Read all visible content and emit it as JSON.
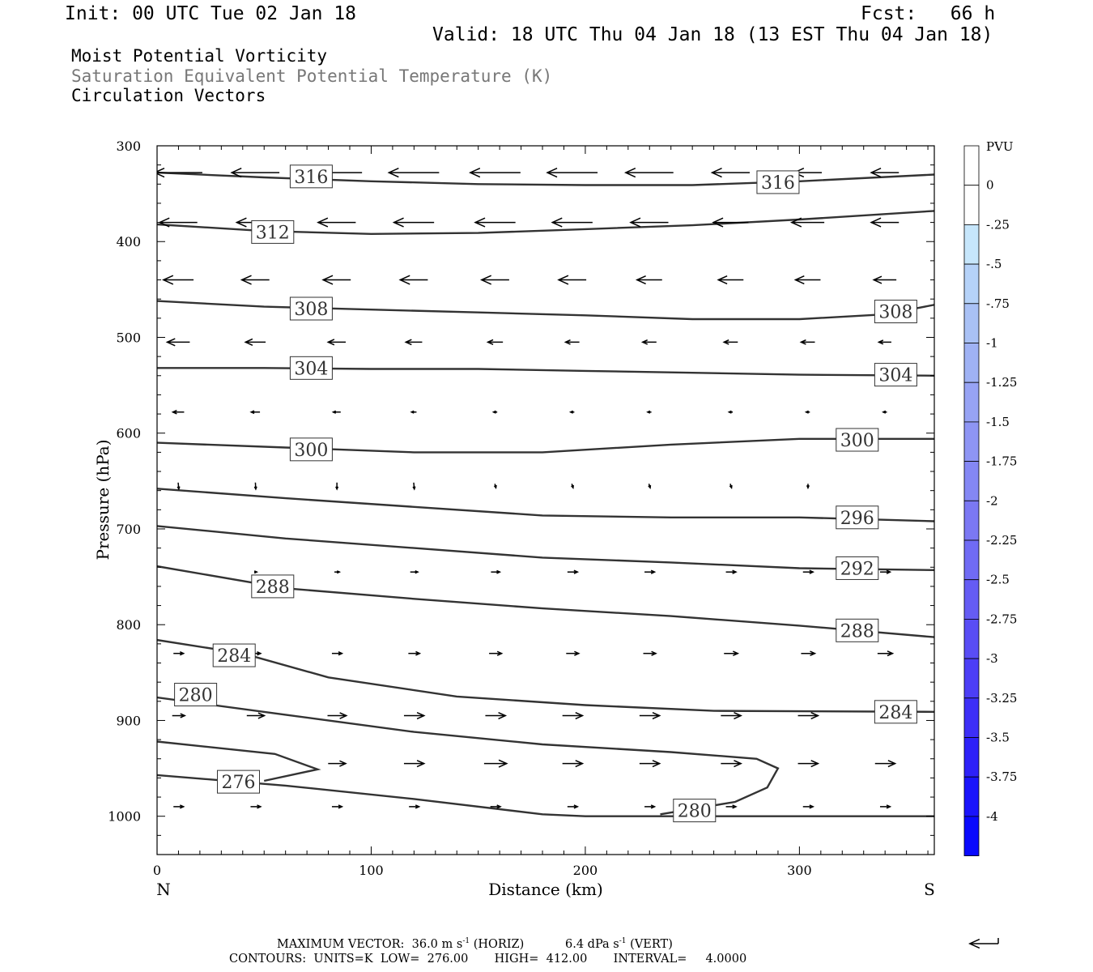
{
  "header": {
    "init": "Init: 00 UTC Tue 02 Jan 18",
    "fcst": "Fcst:   66 h",
    "valid": "Valid: 18 UTC Thu 04 Jan 18 (13 EST Thu 04 Jan 18)",
    "field1": "Moist Potential Vorticity",
    "field2": "Saturation Equivalent Potential Temperature (K)",
    "field3": "Circulation Vectors"
  },
  "footer": {
    "max_vector_label": "MAXIMUM VECTOR:",
    "max_h_value": "36.0 m s",
    "max_h_unit": "(HORIZ)",
    "max_v_value": "6.4 dPa s",
    "max_v_unit": "(VERT)",
    "exponent": "-1",
    "contours": "CONTOURS:  UNITS=K  LOW=  276.00       HIGH=  412.00       INTERVAL=     4.0000"
  },
  "colors": {
    "contour": "#333333",
    "axis": "#000000"
  },
  "chart_data": {
    "type": "cross-section",
    "xlabel": "Distance (km)",
    "ylabel": "Pressure (hPa)",
    "xlim": [
      0,
      363
    ],
    "ylim": [
      1040,
      300
    ],
    "x_ticks": [
      "0",
      "100",
      "200",
      "300"
    ],
    "y_ticks": [
      "300",
      "400",
      "500",
      "600",
      "700",
      "800",
      "900",
      "1000"
    ],
    "left_end_label": "N",
    "right_end_label": "S",
    "colorbar": {
      "unit": "PVU",
      "labels": [
        "0",
        "-.25",
        "-.5",
        "-.75",
        "-1",
        "-1.25",
        "-1.5",
        "-1.75",
        "-2",
        "-2.25",
        "-2.5",
        "-2.75",
        "-3",
        "-3.25",
        "-3.5",
        "-3.75",
        "-4"
      ],
      "colors": [
        "#ffffff",
        "#ffffff",
        "#c6e6fb",
        "#b5d2f8",
        "#a9c1f5",
        "#9fb2f4",
        "#97a3f4",
        "#8e95f4",
        "#8487f4",
        "#7b78f3",
        "#706bf4",
        "#655cf4",
        "#594df5",
        "#4c3ef6",
        "#3d2ff7",
        "#2d21f8",
        "#1a14fb",
        "#0a0afd"
      ]
    },
    "theta_contours": [
      {
        "value": 316,
        "points": [
          [
            0,
            328
          ],
          [
            50,
            333
          ],
          [
            100,
            337
          ],
          [
            150,
            340
          ],
          [
            200,
            341
          ],
          [
            250,
            341
          ],
          [
            300,
            337
          ],
          [
            363,
            330
          ]
        ],
        "labels": [
          [
            72,
            332
          ],
          [
            290,
            338
          ]
        ]
      },
      {
        "value": 312,
        "points": [
          [
            0,
            382
          ],
          [
            50,
            389
          ],
          [
            100,
            392
          ],
          [
            150,
            391
          ],
          [
            200,
            387
          ],
          [
            250,
            383
          ],
          [
            300,
            377
          ],
          [
            363,
            368
          ]
        ],
        "labels": [
          [
            54,
            390
          ]
        ]
      },
      {
        "value": 308,
        "points": [
          [
            0,
            462
          ],
          [
            50,
            468
          ],
          [
            100,
            471
          ],
          [
            150,
            474
          ],
          [
            200,
            477
          ],
          [
            250,
            481
          ],
          [
            300,
            481
          ],
          [
            340,
            476
          ],
          [
            363,
            466
          ]
        ],
        "labels": [
          [
            72,
            470
          ],
          [
            345,
            473
          ]
        ]
      },
      {
        "value": 304,
        "points": [
          [
            0,
            532
          ],
          [
            50,
            532
          ],
          [
            100,
            533
          ],
          [
            150,
            533
          ],
          [
            200,
            535
          ],
          [
            250,
            537
          ],
          [
            300,
            539
          ],
          [
            363,
            540
          ]
        ],
        "labels": [
          [
            72,
            532
          ],
          [
            345,
            539
          ]
        ]
      },
      {
        "value": 300,
        "points": [
          [
            0,
            610
          ],
          [
            60,
            615
          ],
          [
            120,
            620
          ],
          [
            180,
            620
          ],
          [
            240,
            612
          ],
          [
            300,
            606
          ],
          [
            363,
            606
          ]
        ],
        "labels": [
          [
            72,
            617
          ],
          [
            327,
            607
          ]
        ]
      },
      {
        "value": 296,
        "points": [
          [
            0,
            658
          ],
          [
            60,
            668
          ],
          [
            120,
            677
          ],
          [
            180,
            686
          ],
          [
            240,
            688
          ],
          [
            300,
            688
          ],
          [
            363,
            692
          ]
        ],
        "labels": [
          [
            327,
            688
          ]
        ]
      },
      {
        "value": 292,
        "points": [
          [
            0,
            697
          ],
          [
            60,
            710
          ],
          [
            120,
            720
          ],
          [
            180,
            730
          ],
          [
            240,
            735
          ],
          [
            300,
            741
          ],
          [
            363,
            743
          ]
        ],
        "labels": [
          [
            327,
            741
          ]
        ]
      },
      {
        "value": 288,
        "points": [
          [
            0,
            739
          ],
          [
            60,
            762
          ],
          [
            120,
            773
          ],
          [
            180,
            783
          ],
          [
            240,
            791
          ],
          [
            300,
            801
          ],
          [
            363,
            813
          ]
        ],
        "labels": [
          [
            54,
            760
          ],
          [
            327,
            806
          ]
        ]
      },
      {
        "value": 284,
        "points": [
          [
            0,
            816
          ],
          [
            40,
            830
          ],
          [
            80,
            855
          ],
          [
            140,
            875
          ],
          [
            200,
            884
          ],
          [
            260,
            890
          ],
          [
            363,
            891
          ]
        ],
        "labels": [
          [
            36,
            832
          ],
          [
            345,
            891
          ]
        ]
      },
      {
        "value": 280,
        "points": [
          [
            0,
            876
          ],
          [
            60,
            894
          ],
          [
            120,
            912
          ],
          [
            180,
            925
          ],
          [
            240,
            933
          ],
          [
            280,
            940
          ],
          [
            290,
            950
          ],
          [
            285,
            970
          ],
          [
            270,
            985
          ],
          [
            235,
            998
          ]
        ],
        "labels": [
          [
            18,
            873
          ],
          [
            251,
            994
          ]
        ]
      },
      {
        "value": 280,
        "points": [
          [
            0,
            922
          ],
          [
            55,
            935
          ],
          [
            75,
            951
          ],
          [
            50,
            963
          ]
        ],
        "labels": []
      },
      {
        "value": 276,
        "points": [
          [
            0,
            957
          ],
          [
            60,
            968
          ],
          [
            120,
            982
          ],
          [
            180,
            998
          ],
          [
            200,
            1000
          ],
          [
            363,
            1000
          ]
        ],
        "labels": [
          [
            38,
            964
          ]
        ]
      }
    ],
    "vectors": {
      "x": [
        10,
        46,
        84,
        120,
        158,
        194,
        230,
        268,
        304,
        340
      ],
      "rows": [
        {
          "p": 328,
          "u": [
            -38,
            -38,
            -40,
            -40,
            -40,
            -40,
            -38,
            -30,
            -22,
            -22
          ]
        },
        {
          "p": 380,
          "u": [
            -30,
            -30,
            -30,
            -32,
            -32,
            -32,
            -30,
            -28,
            -26,
            -22
          ]
        },
        {
          "p": 440,
          "u": [
            -24,
            -22,
            -22,
            -22,
            -22,
            -22,
            -20,
            -20,
            -20,
            -18
          ]
        },
        {
          "p": 505,
          "u": [
            -18,
            -16,
            -14,
            -13,
            -12,
            -11,
            -11,
            -11,
            -11,
            -10
          ]
        },
        {
          "p": 578,
          "u": [
            -9,
            -7,
            -6,
            -4,
            -3,
            -3,
            -3,
            -3,
            -3,
            -3
          ]
        },
        {
          "p": 655,
          "u": [
            0.5,
            0.3,
            0,
            0.5,
            0.8,
            1,
            1,
            1,
            0,
            0
          ],
          "w": [
            0.8,
            0.8,
            0.8,
            0.8,
            0.5,
            0.5,
            0.5,
            0.5,
            0.5,
            0
          ]
        },
        {
          "p": 745,
          "u": [
            0,
            2,
            4,
            6,
            7,
            8,
            8,
            8,
            8,
            8
          ]
        },
        {
          "p": 830,
          "u": [
            8,
            8,
            8,
            9,
            10,
            10,
            10,
            11,
            11,
            12
          ]
        },
        {
          "p": 895,
          "u": [
            10,
            14,
            15,
            16,
            16,
            16,
            16,
            16,
            16,
            16
          ]
        },
        {
          "p": 945,
          "u": [
            0,
            0,
            14,
            16,
            18,
            16,
            16,
            16,
            16,
            16
          ]
        },
        {
          "p": 990,
          "u": [
            8,
            8,
            8,
            8,
            8,
            8,
            8,
            8,
            8,
            8
          ]
        }
      ]
    },
    "reference_vector": {
      "u": -36
    }
  }
}
